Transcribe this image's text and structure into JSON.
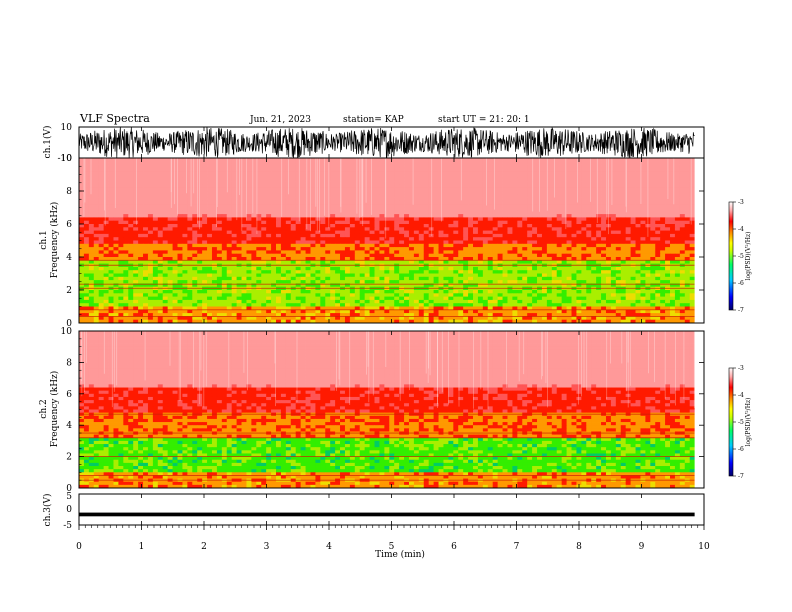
{
  "header": {
    "title": "VLF Spectra",
    "date": "Jun. 21, 2023",
    "station": "station= KAP",
    "start": "start  UT  =   21: 20: 1"
  },
  "colors": {
    "waveform": "#000000",
    "spec_top": "#ff0000",
    "spec_mid": "#ffdd00",
    "spec_low": "#00ee00",
    "colormap": [
      "#000066",
      "#0000ff",
      "#00ccff",
      "#00ff66",
      "#ccff00",
      "#ffff00",
      "#ff8800",
      "#ff0000",
      "#ffbbbb",
      "#ffffff"
    ]
  },
  "chart_data": [
    {
      "id": "ch1_waveform",
      "type": "line",
      "ylabel": "ch.1(V)",
      "ylim": [
        -10,
        10
      ],
      "yticks": [
        "10",
        "-10"
      ],
      "xlim": [
        0,
        10
      ],
      "note_values": "dense oscillating waveform spanning about -10 to 10 V across 0-9.85 min"
    },
    {
      "id": "ch1_spectrogram",
      "type": "heatmap",
      "ylabel": "ch.1\nFrequency (kHz)",
      "ylabel_line1": "ch.1",
      "ylabel_line2": "Frequency (kHz)",
      "ylim": [
        0,
        10
      ],
      "yticks": [
        "0",
        "2",
        "4",
        "6",
        "8",
        "10"
      ],
      "xlim": [
        0,
        10
      ],
      "data_extent_min": 9.85,
      "colorbar": {
        "label": "log(PSD)(V²/Hz)",
        "range": [
          -7,
          -3
        ],
        "ticks": [
          "-3",
          "-4",
          "-5",
          "-6",
          "-7"
        ]
      },
      "bands": [
        {
          "from_khz": 0,
          "to_khz": 1.0,
          "level": -4.2
        },
        {
          "from_khz": 1.0,
          "to_khz": 3.8,
          "level": -4.8
        },
        {
          "from_khz": 3.8,
          "to_khz": 4.8,
          "level": -4.1
        },
        {
          "from_khz": 4.8,
          "to_khz": 6.5,
          "level": -3.7
        },
        {
          "from_khz": 6.5,
          "to_khz": 10,
          "level": -3.2
        }
      ],
      "lines_khz": [
        0.4,
        0.8,
        2.1,
        2.35,
        3.5,
        3.8
      ]
    },
    {
      "id": "ch2_spectrogram",
      "type": "heatmap",
      "ylabel": "ch.2\nFrequency (kHz)",
      "ylabel_line1": "ch.2",
      "ylabel_line2": "Frequency (kHz)",
      "ylim": [
        0,
        10
      ],
      "yticks": [
        "0",
        "2",
        "4",
        "6",
        "8",
        "10"
      ],
      "xlim": [
        0,
        10
      ],
      "data_extent_min": 9.85,
      "colorbar": {
        "label": "log(PSD)(V²/Hz)",
        "range": [
          -7,
          -3
        ],
        "ticks": [
          "-3",
          "-4",
          "-5",
          "-6",
          "-7"
        ]
      },
      "bands": [
        {
          "from_khz": 0,
          "to_khz": 1.0,
          "level": -4.2
        },
        {
          "from_khz": 1.0,
          "to_khz": 3.3,
          "level": -5.0
        },
        {
          "from_khz": 3.3,
          "to_khz": 4.7,
          "level": -4.1
        },
        {
          "from_khz": 4.7,
          "to_khz": 6.5,
          "level": -3.7
        },
        {
          "from_khz": 6.5,
          "to_khz": 10,
          "level": -3.2
        }
      ],
      "lines_khz": [
        0.5,
        0.8,
        2.0,
        3.2,
        3.5,
        4.7
      ]
    },
    {
      "id": "ch3_waveform",
      "type": "line",
      "ylabel": "ch.3(V)",
      "ylim": [
        -5,
        5
      ],
      "yticks": [
        "5",
        "0",
        "-5"
      ],
      "xlim": [
        0,
        10
      ],
      "band_volts": [
        -2.2,
        -1.0
      ],
      "note_values": "narrow dense band near -1.6 V across 0-9.85 min"
    }
  ],
  "xaxis": {
    "label": "Time (min)",
    "ticks": [
      "0",
      "1",
      "2",
      "3",
      "4",
      "5",
      "6",
      "7",
      "8",
      "9",
      "10"
    ],
    "range": [
      0,
      10
    ]
  }
}
